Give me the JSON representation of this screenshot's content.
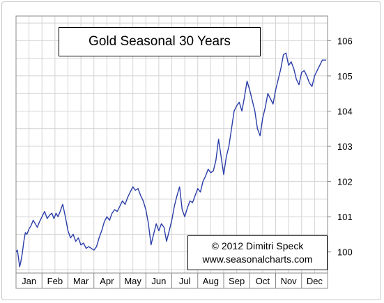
{
  "chart_data": {
    "type": "line",
    "title": "Gold Seasonal 30 Years",
    "annotation_lines": [
      "© 2012  Dimitri Speck",
      "www.seasonalcharts.com"
    ],
    "categories": [
      "Jan",
      "Feb",
      "Mar",
      "Apr",
      "May",
      "Jun",
      "Jul",
      "Aug",
      "Sep",
      "Oct",
      "Nov",
      "Dec"
    ],
    "y_ticks": [
      100,
      101,
      102,
      103,
      104,
      105,
      106
    ],
    "ylim": [
      99.4,
      106.7
    ],
    "grid": true,
    "line_color": "#2a3da8",
    "series": [
      {
        "x": [
          0.0,
          0.05,
          0.09,
          0.14,
          0.18,
          0.24,
          0.3,
          0.36,
          0.42,
          0.5,
          0.58,
          0.66,
          0.74,
          0.82,
          0.9,
          1.0,
          1.1,
          1.2,
          1.3,
          1.38,
          1.46,
          1.54,
          1.62,
          1.7,
          1.8,
          1.9,
          2.0,
          2.1,
          2.2,
          2.3,
          2.4,
          2.5,
          2.6,
          2.7,
          2.8,
          2.9,
          3.0,
          3.1,
          3.2,
          3.3,
          3.4,
          3.5,
          3.6,
          3.7,
          3.8,
          3.9,
          4.0,
          4.1,
          4.2,
          4.3,
          4.4,
          4.5,
          4.6,
          4.7,
          4.8,
          4.9,
          5.0,
          5.1,
          5.2,
          5.3,
          5.4,
          5.5,
          5.6,
          5.7,
          5.8,
          5.9,
          6.0,
          6.1,
          6.2,
          6.3,
          6.4,
          6.5,
          6.6,
          6.7,
          6.8,
          6.9,
          7.0,
          7.1,
          7.2,
          7.3,
          7.4,
          7.5,
          7.6,
          7.7,
          7.8,
          7.9,
          8.0,
          8.1,
          8.2,
          8.3,
          8.4,
          8.5,
          8.6,
          8.7,
          8.8,
          8.9,
          9.0,
          9.1,
          9.2,
          9.3,
          9.4,
          9.5,
          9.6,
          9.7,
          9.8,
          9.9,
          10.0,
          10.1,
          10.2,
          10.3,
          10.4,
          10.5,
          10.6,
          10.7,
          10.8,
          10.9,
          11.0,
          11.1,
          11.2,
          11.3,
          11.4,
          11.5,
          11.6,
          11.7,
          11.8,
          11.95
        ],
        "y": [
          100.0,
          100.05,
          99.85,
          99.58,
          99.7,
          99.95,
          100.3,
          100.55,
          100.5,
          100.65,
          100.75,
          100.9,
          100.8,
          100.7,
          100.85,
          101.0,
          101.15,
          100.95,
          101.05,
          101.1,
          100.95,
          101.1,
          101.0,
          101.15,
          101.35,
          101.0,
          100.6,
          100.4,
          100.5,
          100.3,
          100.4,
          100.2,
          100.25,
          100.1,
          100.15,
          100.1,
          100.05,
          100.15,
          100.4,
          100.6,
          100.85,
          101.0,
          100.9,
          101.1,
          101.2,
          101.15,
          101.3,
          101.45,
          101.35,
          101.55,
          101.7,
          101.85,
          101.75,
          101.8,
          101.6,
          101.45,
          101.2,
          100.8,
          100.2,
          100.5,
          100.8,
          100.6,
          100.8,
          100.7,
          100.3,
          100.6,
          100.9,
          101.3,
          101.6,
          101.85,
          101.2,
          101.0,
          101.25,
          101.45,
          101.4,
          101.6,
          101.8,
          101.7,
          102.0,
          102.15,
          102.35,
          102.25,
          102.3,
          102.6,
          103.2,
          102.7,
          102.2,
          102.7,
          103.0,
          103.5,
          104.0,
          104.15,
          104.25,
          104.0,
          104.4,
          104.85,
          104.6,
          104.3,
          104.0,
          103.5,
          103.3,
          103.8,
          104.1,
          104.5,
          104.35,
          104.2,
          104.6,
          104.9,
          105.2,
          105.6,
          105.65,
          105.3,
          105.4,
          105.2,
          104.9,
          104.75,
          105.1,
          105.15,
          105.0,
          104.8,
          104.7,
          105.0,
          105.15,
          105.3,
          105.45,
          105.45
        ]
      }
    ]
  }
}
